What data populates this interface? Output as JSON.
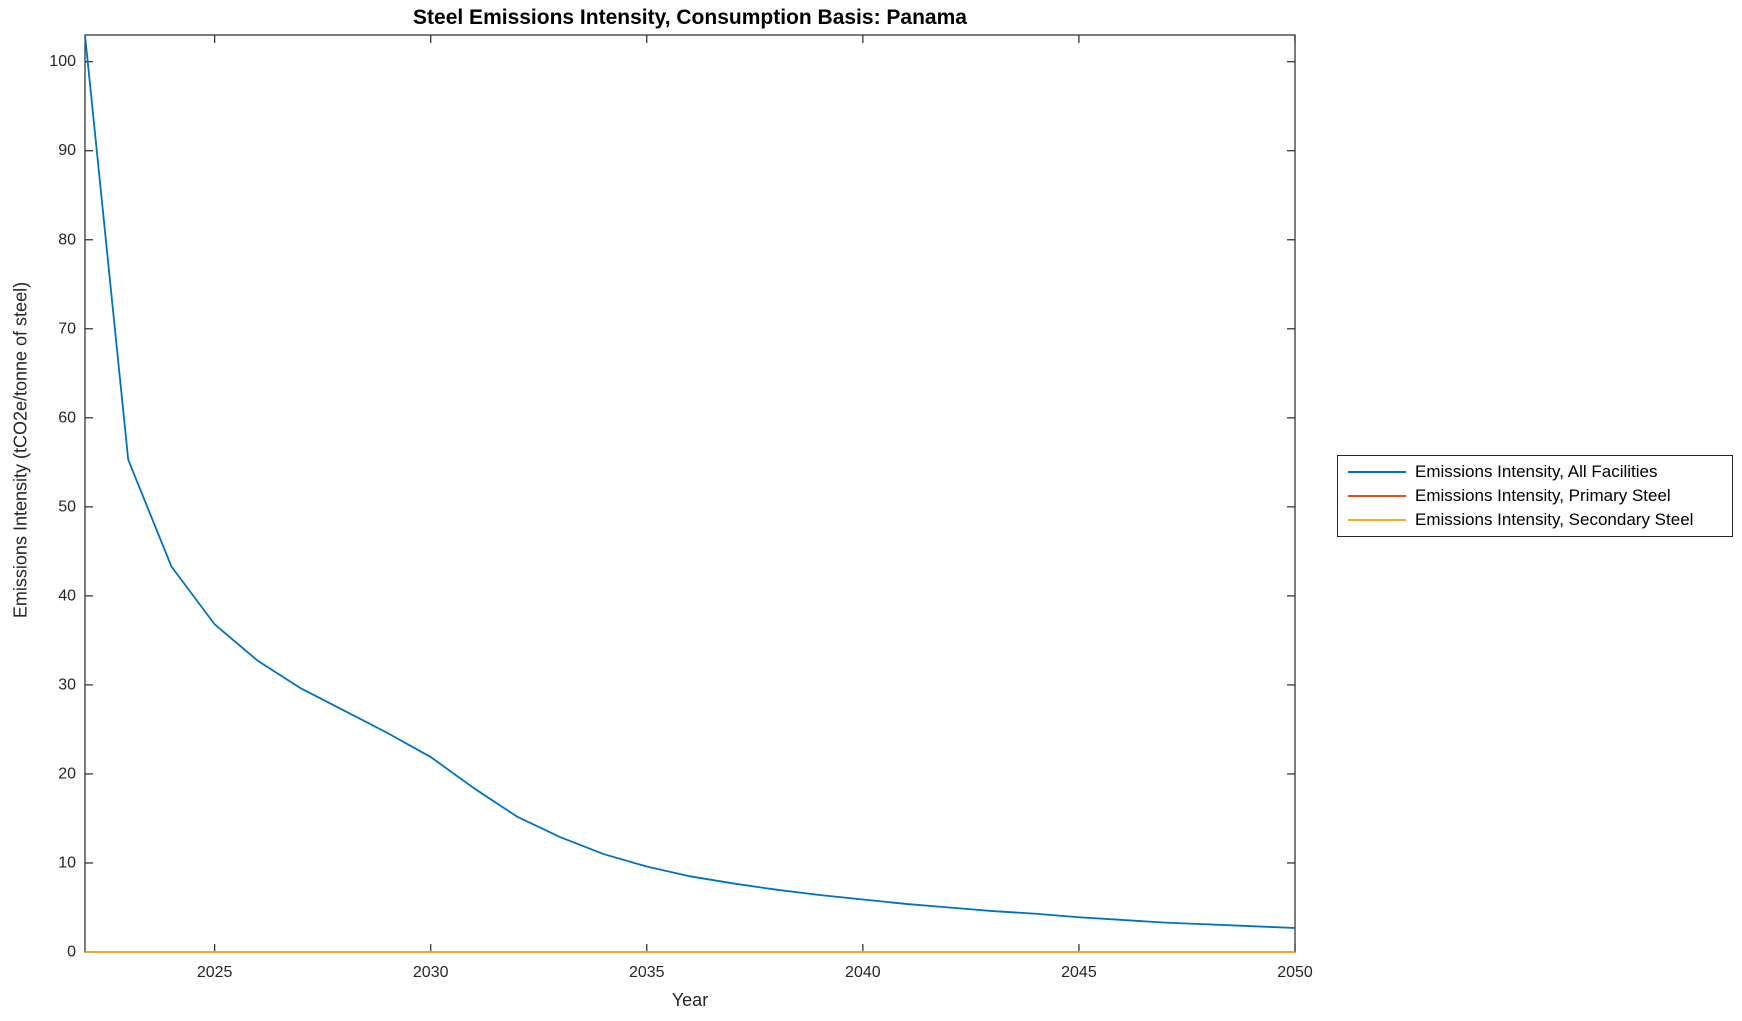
{
  "figure": {
    "background": "#ffffff"
  },
  "chart_data": {
    "type": "line",
    "title": "Steel Emissions Intensity, Consumption Basis: Panama",
    "xlabel": "Year",
    "ylabel": "Emissions Intensity (tCO2e/tonne of steel)",
    "xlim": [
      2022,
      2050
    ],
    "ylim": [
      0,
      103
    ],
    "xticks": [
      2025,
      2030,
      2035,
      2040,
      2045,
      2050
    ],
    "yticks": [
      0,
      10,
      20,
      30,
      40,
      50,
      60,
      70,
      80,
      90,
      100
    ],
    "grid": false,
    "legend_position": "right-outside",
    "axis_color": "#262626",
    "x": [
      2022,
      2023,
      2024,
      2025,
      2026,
      2027,
      2028,
      2029,
      2030,
      2031,
      2032,
      2033,
      2034,
      2035,
      2036,
      2037,
      2038,
      2039,
      2040,
      2041,
      2042,
      2043,
      2044,
      2045,
      2046,
      2047,
      2048,
      2049,
      2050
    ],
    "series": [
      {
        "name": "Emissions Intensity, All Facilities",
        "color": "#0072BD",
        "values": [
          103,
          55.3,
          43.3,
          36.8,
          32.7,
          29.6,
          27.1,
          24.6,
          21.9,
          18.4,
          15.2,
          12.9,
          11.0,
          9.6,
          8.5,
          7.7,
          7.0,
          6.4,
          5.9,
          5.4,
          5.0,
          4.6,
          4.3,
          3.9,
          3.6,
          3.3,
          3.1,
          2.9,
          2.7
        ]
      },
      {
        "name": "Emissions Intensity, Primary Steel",
        "color": "#D95319",
        "values": [
          0,
          0,
          0,
          0,
          0,
          0,
          0,
          0,
          0,
          0,
          0,
          0,
          0,
          0,
          0,
          0,
          0,
          0,
          0,
          0,
          0,
          0,
          0,
          0,
          0,
          0,
          0,
          0,
          0
        ]
      },
      {
        "name": "Emissions Intensity, Secondary Steel",
        "color": "#EDB120",
        "values": [
          0,
          0,
          0,
          0,
          0,
          0,
          0,
          0,
          0,
          0,
          0,
          0,
          0,
          0,
          0,
          0,
          0,
          0,
          0,
          0,
          0,
          0,
          0,
          0,
          0,
          0,
          0,
          0,
          0
        ]
      }
    ]
  }
}
